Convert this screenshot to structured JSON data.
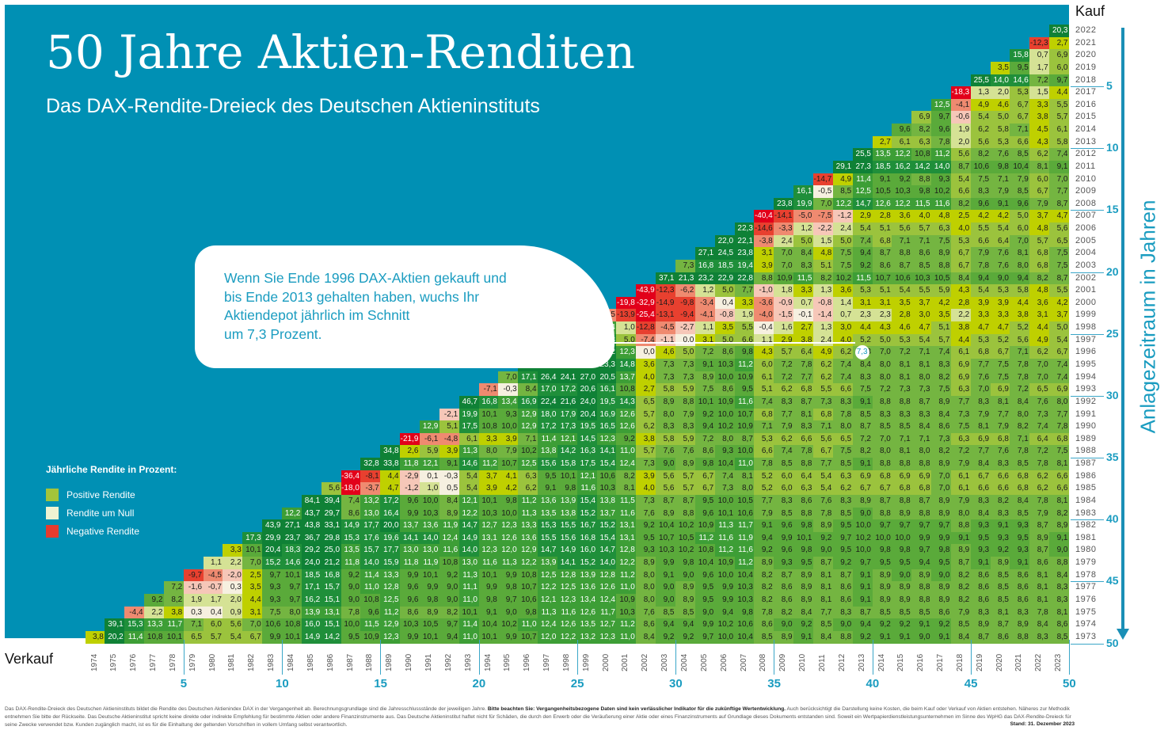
{
  "header": {
    "title": "50 Jahre Aktien-Renditen",
    "subtitle": "Das DAX-Rendite-Dreieck des Deutschen Aktieninstituts"
  },
  "callout": {
    "text_lines": [
      "Wenn Sie Ende 1996 DAX-Aktien gekauft und",
      "bis Ende 2013 gehalten haben, wuchs Ihr",
      "Aktiendepot jährlich im Schnitt",
      "um 7,3 Prozent."
    ],
    "highlight_value": "7,3"
  },
  "legend": {
    "title": "Jährliche Rendite in Prozent:",
    "items": [
      {
        "label": "Positive Rendite",
        "color": "#a3c43a"
      },
      {
        "label": "Rendite um Null",
        "color": "#eef3d2"
      },
      {
        "label": "Negative Rendite",
        "color": "#e63b2e"
      }
    ]
  },
  "axes": {
    "kauf_label": "Kauf",
    "verkauf_label": "Verkauf",
    "right_axis_title": "Anlagezeitraum in Jahren",
    "period_ticks": [
      "5",
      "10",
      "15",
      "20",
      "25",
      "30",
      "35",
      "40",
      "45",
      "50"
    ]
  },
  "footer": {
    "disclaimer_1": "Das DAX-Rendite-Dreieck des Deutschen Aktieninstituts bildet die Rendite des Deutschen Aktienindex DAX in der Vergangenheit ab. Berechnungsgrundlage sind die Jahresschlussstände der jeweiligen Jahre. ",
    "disclaimer_bold": "Bitte beachten Sie: Vergangenheitsbezogene Daten sind kein verlässlicher Indikator für die zukünftige Wertentwicklung.",
    "disclaimer_2": " Auch berücksichtigt die Darstellung keine Kosten, die beim Kauf oder Verkauf von Aktien entstehen. Näheres zur Methodik entnehmen Sie bitte der Rückseite.  Das Deutsche Aktieninstitut spricht keine direkte oder indirekte Empfehlung für bestimmte Aktien oder andere Finanzinstrumente aus. Das Deutsche Aktieninstitut haftet nicht für Schäden, die durch den Erwerb oder die Veräußerung einer Aktie oder eines Finanzinstruments auf Grundlage dieses Dokuments entstanden sind. Soweit ein Wertpapierdienstleistungsunternehmen im Sinne des  WpHG das DAX-Rendite-Dreieck für seine Zwecke verwendet bzw. Kunden zugänglich macht, ist es für die Einhaltung der geltenden Vorschriften in vollem Umfang selbst verantwortlich.",
    "stand": "Stand: 31. Dezember 2023"
  },
  "chart_data": {
    "type": "heatmap",
    "title": "50 Jahre Aktien-Renditen",
    "subtitle": "Das DAX-Rendite-Dreieck des Deutschen Aktieninstituts",
    "xlabel": "Verkauf",
    "ylabel": "Kauf",
    "x_years": [
      1974,
      1975,
      1976,
      1977,
      1978,
      1979,
      1980,
      1981,
      1982,
      1983,
      1984,
      1985,
      1986,
      1987,
      1988,
      1989,
      1990,
      1991,
      1992,
      1993,
      1994,
      1995,
      1996,
      1997,
      1998,
      1999,
      2000,
      2001,
      2002,
      2003,
      2004,
      2005,
      2006,
      2007,
      2008,
      2009,
      2010,
      2011,
      2012,
      2013,
      2014,
      2015,
      2016,
      2017,
      2018,
      2019,
      2020,
      2021,
      2022,
      2023
    ],
    "y_years": [
      2022,
      2021,
      2020,
      2019,
      2018,
      2017,
      2016,
      2015,
      2014,
      2013,
      2012,
      2011,
      2010,
      2009,
      2008,
      2007,
      2006,
      2005,
      2004,
      2003,
      2002,
      2001,
      2000,
      1999,
      1998,
      1997,
      1996,
      1995,
      1994,
      1993,
      1992,
      1991,
      1990,
      1989,
      1988,
      1987,
      1986,
      1985,
      1984,
      1983,
      1982,
      1981,
      1980,
      1979,
      1978,
      1977,
      1976,
      1975,
      1974,
      1973
    ],
    "unit": "% p.a.",
    "rows_note": "Each row lists values from the diagonal (sell year = buy year + 1) to sell year 2023, left to right.",
    "rows": [
      "20,3",
      "-12,3 2,7",
      "15,8 0,7 6,9",
      "3,5 9,5 1,7 6,0",
      "25,5 14,0 14,6 7,2 9,7",
      "-18,3 1,3 2,0 5,3 1,5 4,4",
      "12,5 -4,1 4,9 4,6 6,7 3,3 5,5",
      "6,9 9,7 -0,6 5,4 5,0 6,7 3,8 5,7",
      "9,6 8,2 9,6 1,9 6,2 5,8 7,1 4,5 6,1",
      "2,7 6,1 6,3 7,8 2,0 5,6 5,3 6,6 4,3 5,8",
      "25,5 13,5 12,2 10,8 11,2 5,6 8,2 7,6 8,5 6,2 7,4",
      "29,1 27,3 18,5 16,2 14,2 14,0 8,7 10,6 9,8 10,4 8,1 9,1",
      "-14,7 4,9 11,4 9,1 9,2 8,8 9,3 5,4 7,5 7,1 7,9 6,0 7,0",
      "16,1 -0,5 8,5 12,5 10,5 10,3 9,8 10,2 6,6 8,3 7,9 8,5 6,7 7,7",
      "23,8 19,9 7,0 12,2 14,7 12,6 12,2 11,5 11,6 8,2 9,6 9,1 9,6 7,9 8,7",
      "-40,4 -14,1 -5,0 -7,5 -1,2 2,9 2,8 3,6 4,0 4,8 2,5 4,2 4,2 5,0 3,7 4,7",
      "22,3 -14,6 -3,3 1,2 -2,2 2,4 5,4 5,1 5,6 5,7 6,3 4,0 5,5 5,4 6,0 4,8 5,6",
      "22,0 22,1 -3,8 2,4 5,0 1,5 5,0 7,4 6,8 7,1 7,1 7,5 5,3 6,6 6,4 7,0 5,7 6,5",
      "27,1 24,5 23,8 3,1 7,0 8,4 4,8 7,5 9,4 8,7 8,8 8,6 8,9 6,7 7,9 7,6 8,1 6,8 7,5",
      "7,3 16,8 18,5 19,4 3,9 7,0 8,3 5,1 7,5 9,2 8,6 8,7 8,5 8,8 6,7 7,8 7,6 8,0 6,8 7,5",
      "37,1 21,3 23,2 22,9 22,8 8,8 10,9 11,5 8,2 10,2 11,5 10,7 10,6 10,3 10,5 8,4 9,4 9,0 9,4 8,2 8,7",
      "-43,9 -12,3 -6,2 1,2 5,0 7,7 -1,0 1,8 3,3 1,3 3,6 5,3 5,1 5,4 5,5 5,9 4,3 5,4 5,3 5,8 4,8 5,5",
      "-19,8 -32,9 -14,9 -9,8 -3,4 0,4 3,3 -3,6 -0,9 0,7 -0,8 1,4 3,1 3,1 3,5 3,7 4,2 2,8 3,9 3,9 4,4 3,6 4,2",
      "-7,5 -13,9 -25,4 -13,1 -9,4 -4,1 -0,8 1,9 -4,0 -1,5 -0,1 -1,4 0,7 2,3 2,3 2,8 3,0 3,5 2,2 3,3 3,3 3,8 3,1 3,7",
      "39,1 13,4 1,0 -12,8 -4,5 -2,7 1,1 3,5 5,5 -0,4 1,6 2,7 1,3 3,0 4,4 4,3 4,6 4,7 5,1 3,8 4,7 4,7 5,2 4,4 5,0",
      "17,7 28,0 14,8 5,0 -7,4 -1,1 0,0 3,1 5,0 6,6 1,1 2,9 3,8 2,4 4,0 5,2 5,0 5,3 5,4 5,7 4,4 5,3 5,2 5,6 4,9 5,4",
      "47,1 31,6 34,0 22,2 12,3 0,0 4,6 5,0 7,2 8,6 9,8 4,3 5,7 6,4 4,9 6,2 7,3 7,0 7,2 7,1 7,4 6,1 6,8 6,7 7,1 6,2 6,7",
      "28,2 37,3 30,4 32,6 23,3 14,8 3,6 7,3 7,3 9,1 10,3 11,2 6,0 7,2 7,8 6,2 7,4 8,4 8,0 8,1 8,1 8,3 6,9 7,7 7,5 7,8 7,0 7,4",
      "7,0 17,1 26,4 24,1 27,0 20,5 13,7 4,0 7,3 7,3 8,9 10,0 10,9 6,1 7,2 7,7 6,2 7,4 8,3 8,0 8,1 8,0 8,2 6,9 7,6 7,5 7,8 7,0 7,4",
      "-7,1 -0,3 8,4 17,0 17,2 20,6 16,1 10,8 2,7 5,8 5,9 7,5 8,6 9,5 5,1 6,2 6,8 5,5 6,6 7,5 7,2 7,3 7,3 7,5 6,3 7,0 6,9 7,2 6,5 6,9",
      "46,7 16,8 13,4 16,9 22,4 21,6 24,0 19,5 14,3 6,5 8,9 8,8 10,1 10,9 11,6 7,4 8,3 8,7 7,3 8,3 9,1 8,8 8,8 8,7 8,9 7,7 8,3 8,1 8,4 7,6 8,0",
      "-2,1 19,9 10,1 9,3 12,9 18,0 17,9 20,4 16,9 12,6 5,7 8,0 7,9 9,2 10,0 10,7 6,8 7,7 8,1 6,8 7,8 8,5 8,3 8,3 8,3 8,4 7,3 7,9 7,7 8,0 7,3 7,7",
      "12,9 5,1 17,5 10,8 10,0 12,9 17,2 17,3 19,5 16,5 12,6 6,2 8,3 8,3 9,4 10,2 10,9 7,1 7,9 8,3 7,1 8,0 8,7 8,5 8,5 8,4 8,6 7,5 8,1 7,9 8,2 7,4 7,8",
      "-21,9 -6,1 -4,8 6,1 3,3 3,9 7,1 11,4 12,1 14,5 12,3 9,2 3,8 5,8 5,9 7,2 8,0 8,7 5,3 6,2 6,6 5,6 6,5 7,2 7,0 7,1 7,1 7,3 6,3 6,9 6,8 7,1 6,4 6,8",
      "34,8 2,6 5,9 3,9 11,3 8,0 7,9 10,2 13,8 14,2 16,3 14,1 11,0 5,7 7,6 7,6 8,6 9,3 10,0 6,6 7,4 7,8 6,7 7,5 8,2 8,0 8,1 8,0 8,2 7,2 7,7 7,6 7,8 7,2 7,5",
      "32,8 33,8 11,8 12,1 9,1 14,6 11,2 10,7 12,5 15,6 15,8 17,5 15,4 12,4 7,3 9,0 8,9 9,8 10,4 11,0 7,8 8,5 8,8 7,7 8,5 9,1 8,8 8,8 8,8 8,9 7,9 8,4 8,3 8,5 7,8 8,1",
      "-36,4 -8,1 4,4 -2,9 0,1 -0,3 5,4 3,7 4,1 6,3 9,5 10,1 12,1 10,6 8,2 3,9 5,6 5,7 6,7 7,4 8,1 5,2 6,0 6,4 5,4 6,3 6,9 6,8 6,9 6,9 7,0 6,1 6,7 6,6 6,8 6,2 6,6",
      "5,6 -18,0 -3,7 4,7 -1,2 1,0 0,5 5,4 3,9 4,2 6,2 9,1 9,8 11,6 10,3 8,1 4,0 5,6 5,7 6,7 7,3 8,0 5,2 6,0 6,3 5,4 6,2 6,7 6,7 6,8 6,8 7,0 6,1 6,6 6,6 6,8 6,2 6,6",
      "84,1 39,4 7,4 13,2 17,2 9,6 10,0 8,4 12,1 10,1 9,8 11,2 13,6 13,9 15,4 13,8 11,5 7,3 8,7 8,7 9,5 10,0 10,5 7,7 8,3 8,6 7,6 8,3 8,9 8,7 8,8 8,7 8,9 7,9 8,3 8,2 8,4 7,8 8,1",
      "12,2 43,7 29,7 8,6 13,0 16,4 9,9 10,3 8,9 12,2 10,3 10,0 11,3 13,5 13,8 15,2 13,7 11,6 7,6 8,9 8,8 9,6 10,1 10,6 7,9 8,5 8,8 7,8 8,5 9,0 8,8 8,9 8,8 8,9 8,0 8,4 8,3 8,5 7,9 8,2",
      "43,9 27,1 43,8 33,1 14,9 17,7 20,0 13,7 13,6 11,9 14,7 12,7 12,3 13,3 15,3 15,5 16,7 15,2 13,1 9,2 10,4 10,2 10,9 11,3 11,7 9,1 9,6 9,8 8,9 9,5 10,0 9,7 9,7 9,7 9,7 8,8 9,3 9,1 9,3 8,7 8,9",
      "17,3 29,9 23,7 36,7 29,8 15,3 17,6 19,6 14,1 14,0 12,4 14,9 13,1 12,6 13,6 15,5 15,6 16,8 15,4 13,1 9,5 10,7 10,5 11,2 11,6 11,9 9,4 9,9 10,1 9,2 9,7 10,2 10,0 10,0 9,9 9,9 9,1 9,5 9,3 9,5 8,9 9,1",
      "3,3 10,1 20,4 18,3 29,2 25,0 13,5 15,7 17,7 13,0 13,0 11,6 14,0 12,3 12,0 12,9 14,7 14,9 16,0 14,7 12,8 9,3 10,3 10,2 10,8 11,2 11,6 9,2 9,6 9,8 9,0 9,5 10,0 9,8 9,8 9,7 9,8 8,9 9,3 9,2 9,3 8,7 9,0",
      "1,1 2,2 7,0 15,2 14,6 24,0 21,2 11,8 14,0 15,9 11,8 11,9 10,8 13,0 11,6 11,3 12,2 13,9 14,1 15,2 14,0 12,2 8,9 9,9 9,8 10,4 10,9 11,2 8,9 9,3 9,5 8,7 9,2 9,7 9,5 9,5 9,4 9,5 8,7 9,1 8,9 9,1 8,6 8,8",
      "-9,7 -4,5 -2,0 2,5 9,7 10,1 18,5 16,8 9,2 11,4 13,3 9,9 10,1 9,2 11,3 10,1 9,9 10,8 12,5 12,8 13,9 12,8 11,2 8,0 9,1 9,0 9,6 10,0 10,4 8,2 8,7 8,9 8,1 8,7 9,1 8,9 9,0 8,9 9,0 8,2 8,6 8,5 8,6 8,1 8,4",
      "7,2 -1,6 -0,7 0,3 3,5 9,3 9,7 17,1 15,7 9,0 11,0 12,8 9,6 9,9 9,0 11,1 9,9 9,8 10,7 12,2 12,5 13,6 12,6 11,0 8,0 9,0 8,9 9,5 9,9 10,3 8,2 8,6 8,9 8,1 8,6 9,1 8,9 8,9 8,8 8,9 8,2 8,6 8,5 8,6 8,1 8,3",
      "9,2 8,2 1,9 1,7 2,0 4,4 9,3 9,7 16,2 15,1 9,0 10,8 12,5 9,6 9,8 9,0 11,0 9,8 9,7 10,6 12,1 12,3 13,4 12,4 10,9 8,0 9,0 8,9 9,5 9,9 10,3 8,2 8,6 8,9 8,1 8,6 9,1 8,9 8,9 8,8 8,9 8,2 8,6 8,5 8,6 8,1 8,3",
      "-4,4 2,2 3,8 0,3 0,4 0,9 3,1 7,5 8,0 13,9 13,1 7,8 9,6 11,2 8,6 8,9 8,2 10,1 9,1 9,0 9,8 11,3 11,6 12,6 11,7 10,3 7,6 8,5 8,5 9,0 9,4 9,8 7,8 8,2 8,4 7,7 8,3 8,7 8,5 8,5 8,5 8,6 7,9 8,3 8,1 8,3 7,8 8,1",
      "39,1 15,3 13,3 11,7 7,1 6,0 5,6 7,0 10,6 10,8 16,0 15,1 10,0 11,5 12,9 10,3 10,5 9,7 11,4 10,4 10,2 11,0 12,4 12,6 13,5 12,7 11,2 8,6 9,4 9,4 9,9 10,2 10,6 8,6 9,0 9,2 8,5 9,0 9,4 9,2 9,2 9,1 9,2 8,5 8,9 8,7 8,9 8,4 8,6",
      "3,8 20,2 11,4 10,8 10,1 6,5 5,7 5,4 6,7 9,9 10,1 14,9 14,2 9,5 10,9 12,3 9,9 10,1 9,4 11,0 10,1 9,9 10,7 12,0 12,2 13,2 12,3 11,0 8,4 9,2 9,2 9,7 10,0 10,4 8,5 8,9 9,1 8,4 8,8 9,2 9,1 9,1 9,0 9,1 8,4 8,7 8,6 8,8 8,3 8,5"
    ],
    "highlight": {
      "kauf": 1996,
      "verkauf": 2013,
      "value": 7.3
    }
  }
}
